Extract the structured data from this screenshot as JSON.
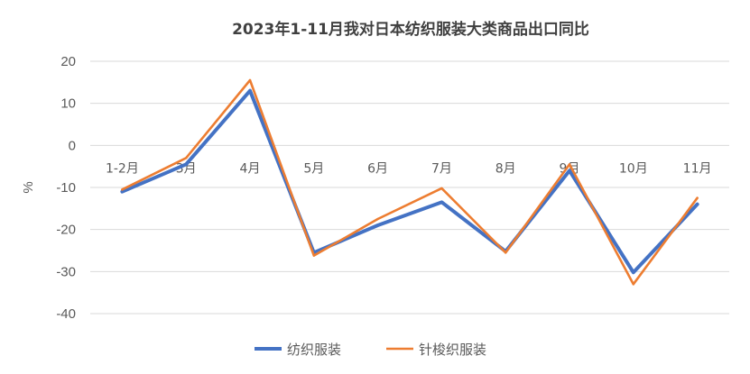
{
  "chart_data": {
    "type": "line",
    "title": "2023年1-11月我对日本纺织服装大类商品出口同比",
    "ylabel": "%",
    "xlabel": "",
    "ylim": [
      -40,
      20
    ],
    "yticks": [
      20,
      10,
      0,
      -10,
      -20,
      -30,
      -40
    ],
    "grid": true,
    "legend": "bottom",
    "categories": [
      "1-2月",
      "3月",
      "4月",
      "5月",
      "6月",
      "7月",
      "8月",
      "9月",
      "10月",
      "11月"
    ],
    "series": [
      {
        "name": "纺织服装",
        "color": "#4472C4",
        "values": [
          -11.0,
          -4.5,
          13.0,
          -25.5,
          -19.0,
          -13.5,
          -25.2,
          -6.0,
          -30.2,
          -14.0
        ]
      },
      {
        "name": "针梭织服装",
        "color": "#ED7D31",
        "values": [
          -10.5,
          -3.0,
          15.5,
          -26.2,
          -17.5,
          -10.2,
          -25.5,
          -4.5,
          -33.0,
          -12.5
        ]
      }
    ]
  }
}
